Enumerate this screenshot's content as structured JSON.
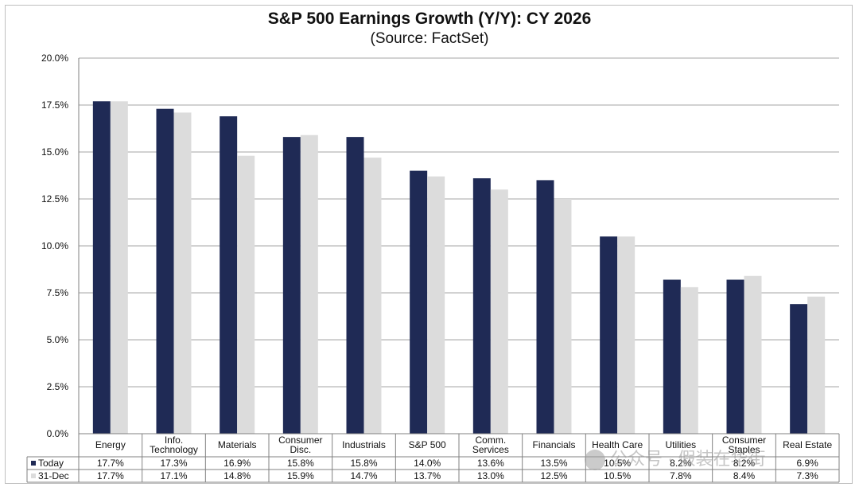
{
  "chart_data": {
    "type": "bar",
    "title": "S&P 500 Earnings Growth (Y/Y): CY 2026",
    "subtitle": "(Source: FactSet)",
    "categories": [
      [
        "Energy"
      ],
      [
        "Info.",
        "Technology"
      ],
      [
        "Materials"
      ],
      [
        "Consumer",
        "Disc."
      ],
      [
        "Industrials"
      ],
      [
        "S&P 500"
      ],
      [
        "Comm.",
        "Services"
      ],
      [
        "Financials"
      ],
      [
        "Health Care"
      ],
      [
        "Utilities"
      ],
      [
        "Consumer",
        "Staples"
      ],
      [
        "Real Estate"
      ]
    ],
    "series": [
      {
        "name": "Today",
        "color": "#1f2a55",
        "values": [
          17.7,
          17.3,
          16.9,
          15.8,
          15.8,
          14.0,
          13.6,
          13.5,
          10.5,
          8.2,
          8.2,
          6.9
        ],
        "labels": [
          "17.7%",
          "17.3%",
          "16.9%",
          "15.8%",
          "15.8%",
          "14.0%",
          "13.6%",
          "13.5%",
          "10.5%",
          "8.2%",
          "8.2%",
          "6.9%"
        ]
      },
      {
        "name": "31-Dec",
        "color": "#dcdcdc",
        "values": [
          17.7,
          17.1,
          14.8,
          15.9,
          14.7,
          13.7,
          13.0,
          12.5,
          10.5,
          7.8,
          8.4,
          7.3
        ],
        "labels": [
          "17.7%",
          "17.1%",
          "14.8%",
          "15.9%",
          "14.7%",
          "13.7%",
          "13.0%",
          "12.5%",
          "10.5%",
          "7.8%",
          "8.4%",
          "7.3%"
        ]
      }
    ],
    "ylim": [
      0,
      20
    ],
    "yticks": [
      "0.0%",
      "2.5%",
      "5.0%",
      "7.5%",
      "10.0%",
      "12.5%",
      "15.0%",
      "17.5%",
      "20.0%"
    ],
    "grid": true,
    "legend": "data-table"
  },
  "watermark": "公众号 · 假装在华街"
}
